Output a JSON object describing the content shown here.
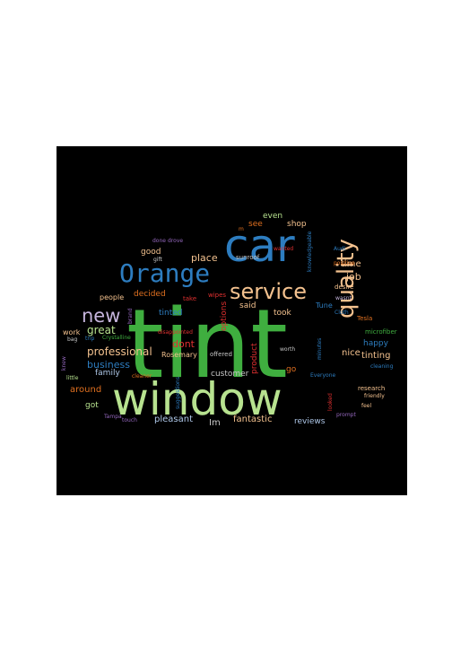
{
  "word_cloud": {
    "background": "#000000",
    "words": [
      {
        "text": "tint",
        "color": "#3fae3f"
      },
      {
        "text": "window",
        "color": "#b7e28f"
      },
      {
        "text": "car",
        "color": "#2d7dc0"
      },
      {
        "text": "Orange",
        "color": "#2d7dc0"
      },
      {
        "text": "service",
        "color": "#f4c28f"
      },
      {
        "text": "quality",
        "color": "#f4c28f"
      },
      {
        "text": "new",
        "color": "#c6b5dd"
      },
      {
        "text": "professional",
        "color": "#f4c28f"
      },
      {
        "text": "place",
        "color": "#f4c28f"
      },
      {
        "text": "great",
        "color": "#b7e28f"
      },
      {
        "text": "business",
        "color": "#2d7dc0"
      },
      {
        "text": "time",
        "color": "#f4c28f"
      },
      {
        "text": "job",
        "color": "#f4c28f"
      },
      {
        "text": "nice",
        "color": "#f4c28f"
      },
      {
        "text": "tinting",
        "color": "#f4c28f"
      },
      {
        "text": "happy",
        "color": "#2d7dc0"
      },
      {
        "text": "decided",
        "color": "#e07020"
      },
      {
        "text": "even",
        "color": "#b7e28f"
      },
      {
        "text": "shop",
        "color": "#f4c28f"
      },
      {
        "text": "see",
        "color": "#e07020"
      },
      {
        "text": "good",
        "color": "#f4c28f"
      },
      {
        "text": "tinted",
        "color": "#2d7dc0"
      },
      {
        "text": "dont",
        "color": "#e03030"
      },
      {
        "text": "said",
        "color": "#f4c28f"
      },
      {
        "text": "took",
        "color": "#f4c28f"
      },
      {
        "text": "family",
        "color": "#aec7e8"
      },
      {
        "text": "around",
        "color": "#e07020"
      },
      {
        "text": "got",
        "color": "#b7e28f"
      },
      {
        "text": "pleasant",
        "color": "#aec7e8"
      },
      {
        "text": "Im",
        "color": "#c7c7c7"
      },
      {
        "text": "fantastic",
        "color": "#f4c28f"
      },
      {
        "text": "reviews",
        "color": "#aec7e8"
      },
      {
        "text": "customer",
        "color": "#c7c7c7"
      },
      {
        "text": "product",
        "color": "#e03030"
      },
      {
        "text": "options",
        "color": "#e03030"
      },
      {
        "text": "go",
        "color": "#e07020"
      },
      {
        "text": "people",
        "color": "#f4c28f"
      },
      {
        "text": "work",
        "color": "#f4c28f"
      },
      {
        "text": "Rosemary",
        "color": "#f4c28f"
      },
      {
        "text": "take",
        "color": "#e03030"
      },
      {
        "text": "wipes",
        "color": "#e03030"
      },
      {
        "text": "brand",
        "color": "#9467bd"
      },
      {
        "text": "Tune",
        "color": "#2d7dc0"
      },
      {
        "text": "Tesla",
        "color": "#e07020"
      },
      {
        "text": "desire",
        "color": "#f4c28f"
      },
      {
        "text": "positive",
        "color": "#e07020"
      },
      {
        "text": "Audi",
        "color": "#2d7dc0"
      },
      {
        "text": "sunroof",
        "color": "#c7c7c7"
      },
      {
        "text": "knowledgeable",
        "color": "#2d7dc0"
      },
      {
        "text": "wanted",
        "color": "#e03030"
      },
      {
        "text": "gift",
        "color": "#c7c7c7"
      },
      {
        "text": "done",
        "color": "#9467bd"
      },
      {
        "text": "drove",
        "color": "#9467bd"
      },
      {
        "text": "m",
        "color": "#e07020"
      },
      {
        "text": "disappointed",
        "color": "#e03030"
      },
      {
        "text": "offered",
        "color": "#c7c7c7"
      },
      {
        "text": "suggestions",
        "color": "#2d7dc0"
      },
      {
        "text": "worth",
        "color": "#c7c7c7"
      },
      {
        "text": "minutes",
        "color": "#2d7dc0"
      },
      {
        "text": "microfiber",
        "color": "#3fae3f"
      },
      {
        "text": "cleaning",
        "color": "#2d7dc0"
      },
      {
        "text": "research",
        "color": "#f4c28f"
      },
      {
        "text": "friendly",
        "color": "#f4c28f"
      },
      {
        "text": "feel",
        "color": "#f4c28f"
      },
      {
        "text": "looked",
        "color": "#e03030"
      },
      {
        "text": "Everyone",
        "color": "#2d7dc0"
      },
      {
        "text": "Cloth",
        "color": "#2d7dc0"
      },
      {
        "text": "wasnt",
        "color": "#c6b5dd"
      },
      {
        "text": "cleaner",
        "color": "#e07020"
      },
      {
        "text": "touch",
        "color": "#9467bd"
      },
      {
        "text": "Tampa",
        "color": "#9467bd"
      },
      {
        "text": "little",
        "color": "#b7e28f"
      },
      {
        "text": "knew",
        "color": "#9467bd"
      },
      {
        "text": "bag",
        "color": "#c7c7c7"
      },
      {
        "text": "trip",
        "color": "#2d7dc0"
      },
      {
        "text": "Crystalline",
        "color": "#3fae3f"
      },
      {
        "text": "prompt",
        "color": "#9467bd"
      }
    ]
  }
}
